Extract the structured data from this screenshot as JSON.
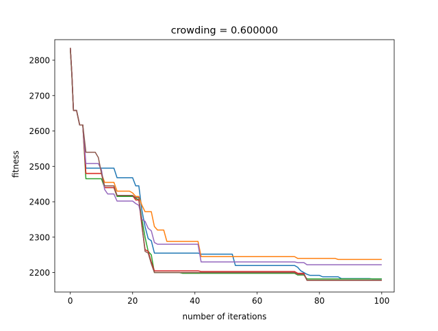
{
  "chart_data": {
    "type": "line",
    "title": "crowding = 0.600000",
    "xlabel": "number of iterations",
    "ylabel": "fitness",
    "xlim": [
      -5,
      104
    ],
    "ylim": [
      2145,
      2858
    ],
    "x_ticks": [
      0,
      20,
      40,
      60,
      80,
      100
    ],
    "y_ticks": [
      2200,
      2300,
      2400,
      2500,
      2600,
      2700,
      2800
    ],
    "grid": false,
    "legend": "none",
    "series": [
      {
        "color": "#1f77b4",
        "points": [
          [
            0,
            2835
          ],
          [
            0.5,
            2760
          ],
          [
            1,
            2658
          ],
          [
            2,
            2658
          ],
          [
            3,
            2617
          ],
          [
            4,
            2617
          ],
          [
            5,
            2495
          ],
          [
            14,
            2495
          ],
          [
            15,
            2468
          ],
          [
            20,
            2468
          ],
          [
            21,
            2445
          ],
          [
            22,
            2445
          ],
          [
            23,
            2375
          ],
          [
            24,
            2330
          ],
          [
            25,
            2296
          ],
          [
            26,
            2290
          ],
          [
            27,
            2255
          ],
          [
            41,
            2255
          ],
          [
            42,
            2252
          ],
          [
            52,
            2252
          ],
          [
            53,
            2220
          ],
          [
            72,
            2220
          ],
          [
            73,
            2215
          ],
          [
            74,
            2205
          ],
          [
            75,
            2200
          ],
          [
            76,
            2195
          ],
          [
            77,
            2192
          ],
          [
            80,
            2192
          ],
          [
            81,
            2188
          ],
          [
            86,
            2188
          ],
          [
            87,
            2183
          ],
          [
            96,
            2183
          ],
          [
            97,
            2182
          ],
          [
            100,
            2182
          ]
        ]
      },
      {
        "color": "#ff7f0e",
        "points": [
          [
            0,
            2835
          ],
          [
            0.5,
            2760
          ],
          [
            1,
            2658
          ],
          [
            2,
            2658
          ],
          [
            3,
            2617
          ],
          [
            4,
            2617
          ],
          [
            5,
            2480
          ],
          [
            10,
            2480
          ],
          [
            11,
            2455
          ],
          [
            14,
            2455
          ],
          [
            15,
            2430
          ],
          [
            19,
            2430
          ],
          [
            20,
            2425
          ],
          [
            21,
            2415
          ],
          [
            22,
            2415
          ],
          [
            23,
            2390
          ],
          [
            24,
            2372
          ],
          [
            26,
            2372
          ],
          [
            27,
            2330
          ],
          [
            28,
            2320
          ],
          [
            30,
            2320
          ],
          [
            31,
            2288
          ],
          [
            41,
            2288
          ],
          [
            42,
            2245
          ],
          [
            72,
            2245
          ],
          [
            73,
            2240
          ],
          [
            85,
            2240
          ],
          [
            86,
            2237
          ],
          [
            100,
            2237
          ]
        ]
      },
      {
        "color": "#2ca02c",
        "points": [
          [
            0,
            2830
          ],
          [
            0.5,
            2755
          ],
          [
            1,
            2658
          ],
          [
            2,
            2658
          ],
          [
            3,
            2617
          ],
          [
            4,
            2617
          ],
          [
            5,
            2465
          ],
          [
            10,
            2465
          ],
          [
            11,
            2440
          ],
          [
            14,
            2440
          ],
          [
            15,
            2415
          ],
          [
            20,
            2415
          ],
          [
            21,
            2410
          ],
          [
            22,
            2405
          ],
          [
            23,
            2350
          ],
          [
            24,
            2300
          ],
          [
            25,
            2260
          ],
          [
            26,
            2250
          ],
          [
            27,
            2200
          ],
          [
            35,
            2200
          ],
          [
            36,
            2198
          ],
          [
            72,
            2198
          ],
          [
            73,
            2193
          ],
          [
            75,
            2193
          ],
          [
            76,
            2182
          ],
          [
            100,
            2182
          ]
        ]
      },
      {
        "color": "#d62728",
        "points": [
          [
            0,
            2835
          ],
          [
            0.5,
            2760
          ],
          [
            1,
            2658
          ],
          [
            2,
            2658
          ],
          [
            3,
            2617
          ],
          [
            4,
            2617
          ],
          [
            5,
            2480
          ],
          [
            10,
            2480
          ],
          [
            11,
            2440
          ],
          [
            14,
            2440
          ],
          [
            15,
            2418
          ],
          [
            20,
            2418
          ],
          [
            21,
            2405
          ],
          [
            22,
            2405
          ],
          [
            23,
            2330
          ],
          [
            24,
            2265
          ],
          [
            25,
            2260
          ],
          [
            26,
            2230
          ],
          [
            27,
            2205
          ],
          [
            41,
            2205
          ],
          [
            42,
            2203
          ],
          [
            72,
            2203
          ],
          [
            73,
            2198
          ],
          [
            75,
            2198
          ],
          [
            76,
            2178
          ],
          [
            100,
            2178
          ]
        ]
      },
      {
        "color": "#9467bd",
        "points": [
          [
            0,
            2835
          ],
          [
            0.5,
            2760
          ],
          [
            1,
            2658
          ],
          [
            2,
            2658
          ],
          [
            3,
            2617
          ],
          [
            4,
            2617
          ],
          [
            5,
            2508
          ],
          [
            9,
            2508
          ],
          [
            10,
            2490
          ],
          [
            11,
            2435
          ],
          [
            12,
            2422
          ],
          [
            14,
            2422
          ],
          [
            15,
            2402
          ],
          [
            20,
            2402
          ],
          [
            21,
            2395
          ],
          [
            22,
            2390
          ],
          [
            23,
            2350
          ],
          [
            24,
            2345
          ],
          [
            25,
            2325
          ],
          [
            26,
            2318
          ],
          [
            27,
            2285
          ],
          [
            28,
            2280
          ],
          [
            41,
            2280
          ],
          [
            42,
            2230
          ],
          [
            72,
            2230
          ],
          [
            73,
            2228
          ],
          [
            75,
            2228
          ],
          [
            76,
            2222
          ],
          [
            100,
            2222
          ]
        ]
      },
      {
        "color": "#8c564b",
        "points": [
          [
            0,
            2835
          ],
          [
            0.5,
            2760
          ],
          [
            1,
            2658
          ],
          [
            2,
            2658
          ],
          [
            3,
            2617
          ],
          [
            4,
            2617
          ],
          [
            5,
            2540
          ],
          [
            8,
            2540
          ],
          [
            9,
            2525
          ],
          [
            10,
            2480
          ],
          [
            11,
            2445
          ],
          [
            14,
            2445
          ],
          [
            15,
            2418
          ],
          [
            20,
            2418
          ],
          [
            21,
            2412
          ],
          [
            22,
            2412
          ],
          [
            23,
            2335
          ],
          [
            24,
            2260
          ],
          [
            25,
            2255
          ],
          [
            26,
            2225
          ],
          [
            27,
            2200
          ],
          [
            72,
            2200
          ],
          [
            73,
            2195
          ],
          [
            75,
            2195
          ],
          [
            76,
            2178
          ],
          [
            100,
            2178
          ]
        ]
      }
    ]
  }
}
